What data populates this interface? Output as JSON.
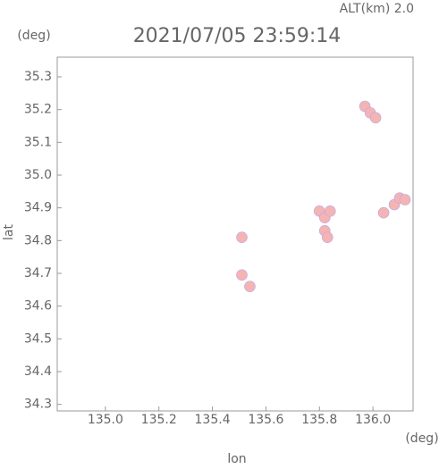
{
  "chart_data": {
    "type": "scatter",
    "title": "2021/07/05 23:59:14",
    "subtitle": "ALT(km) 2.0",
    "x_label": "lon",
    "y_label": "lat",
    "x_unit": "(deg)",
    "y_unit": "(deg)",
    "xlim": [
      134.82,
      136.15
    ],
    "ylim": [
      34.28,
      35.36
    ],
    "xticks": [
      {
        "value": 135,
        "label": "135.0"
      },
      135.2,
      135.4,
      135.6,
      135.8,
      {
        "value": 136,
        "label": "136.0"
      }
    ],
    "yticks": [
      34.3,
      34.4,
      34.5,
      34.6,
      34.7,
      34.8,
      34.9,
      {
        "value": 35,
        "label": "35.0"
      },
      35.1,
      35.2,
      35.3
    ],
    "series": [
      {
        "color": "#f4b4b4",
        "x": [
          135.97,
          135.99,
          136.01,
          136.08,
          136.1,
          136.12,
          136.04,
          135.8,
          135.82,
          135.84,
          135.82,
          135.83,
          135.51,
          135.54,
          135.51
        ],
        "y": [
          35.21,
          35.19,
          35.175,
          34.91,
          34.93,
          34.925,
          34.885,
          34.89,
          34.87,
          34.89,
          34.83,
          34.81,
          34.81,
          34.66,
          34.695
        ]
      }
    ]
  }
}
